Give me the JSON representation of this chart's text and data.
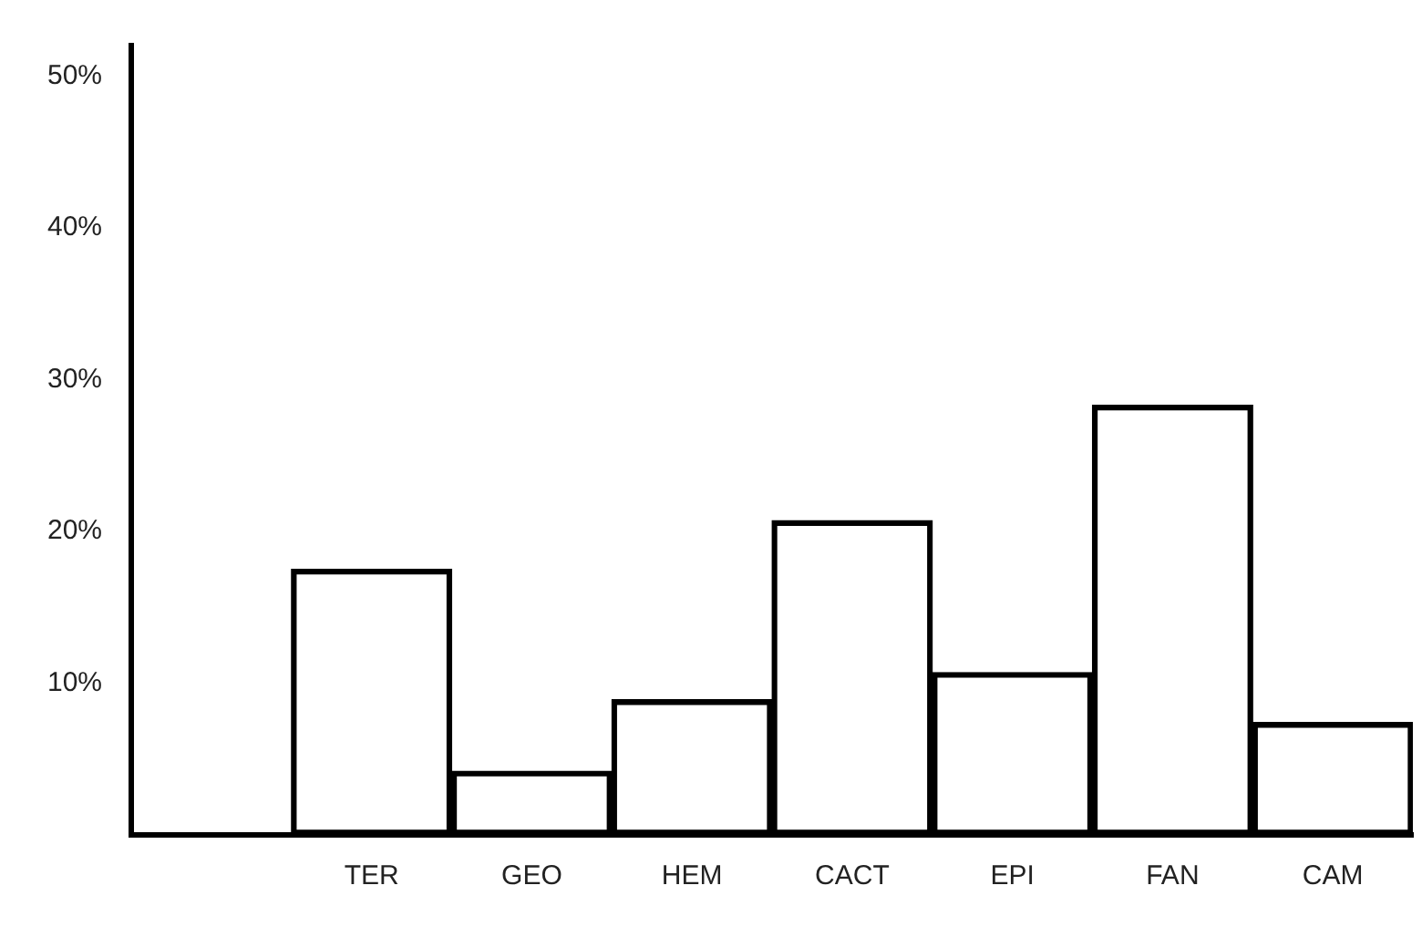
{
  "chart_data": {
    "type": "bar",
    "categories": [
      null,
      "TER",
      "GEO",
      "HEM",
      "CACT",
      "EPI",
      "FAN",
      "CAM"
    ],
    "values": [
      null,
      17.5,
      4.2,
      8.9,
      20.7,
      10.7,
      28.3,
      7.4
    ],
    "color": "#000000",
    "ylim": [
      0,
      52
    ],
    "yticks": [
      {
        "value": 10,
        "label": "10%"
      },
      {
        "value": 20,
        "label": "20%"
      },
      {
        "value": 30,
        "label": "30%"
      },
      {
        "value": 40,
        "label": "40%"
      },
      {
        "value": 50,
        "label": "50%"
      }
    ],
    "grid": false,
    "legend": false
  }
}
